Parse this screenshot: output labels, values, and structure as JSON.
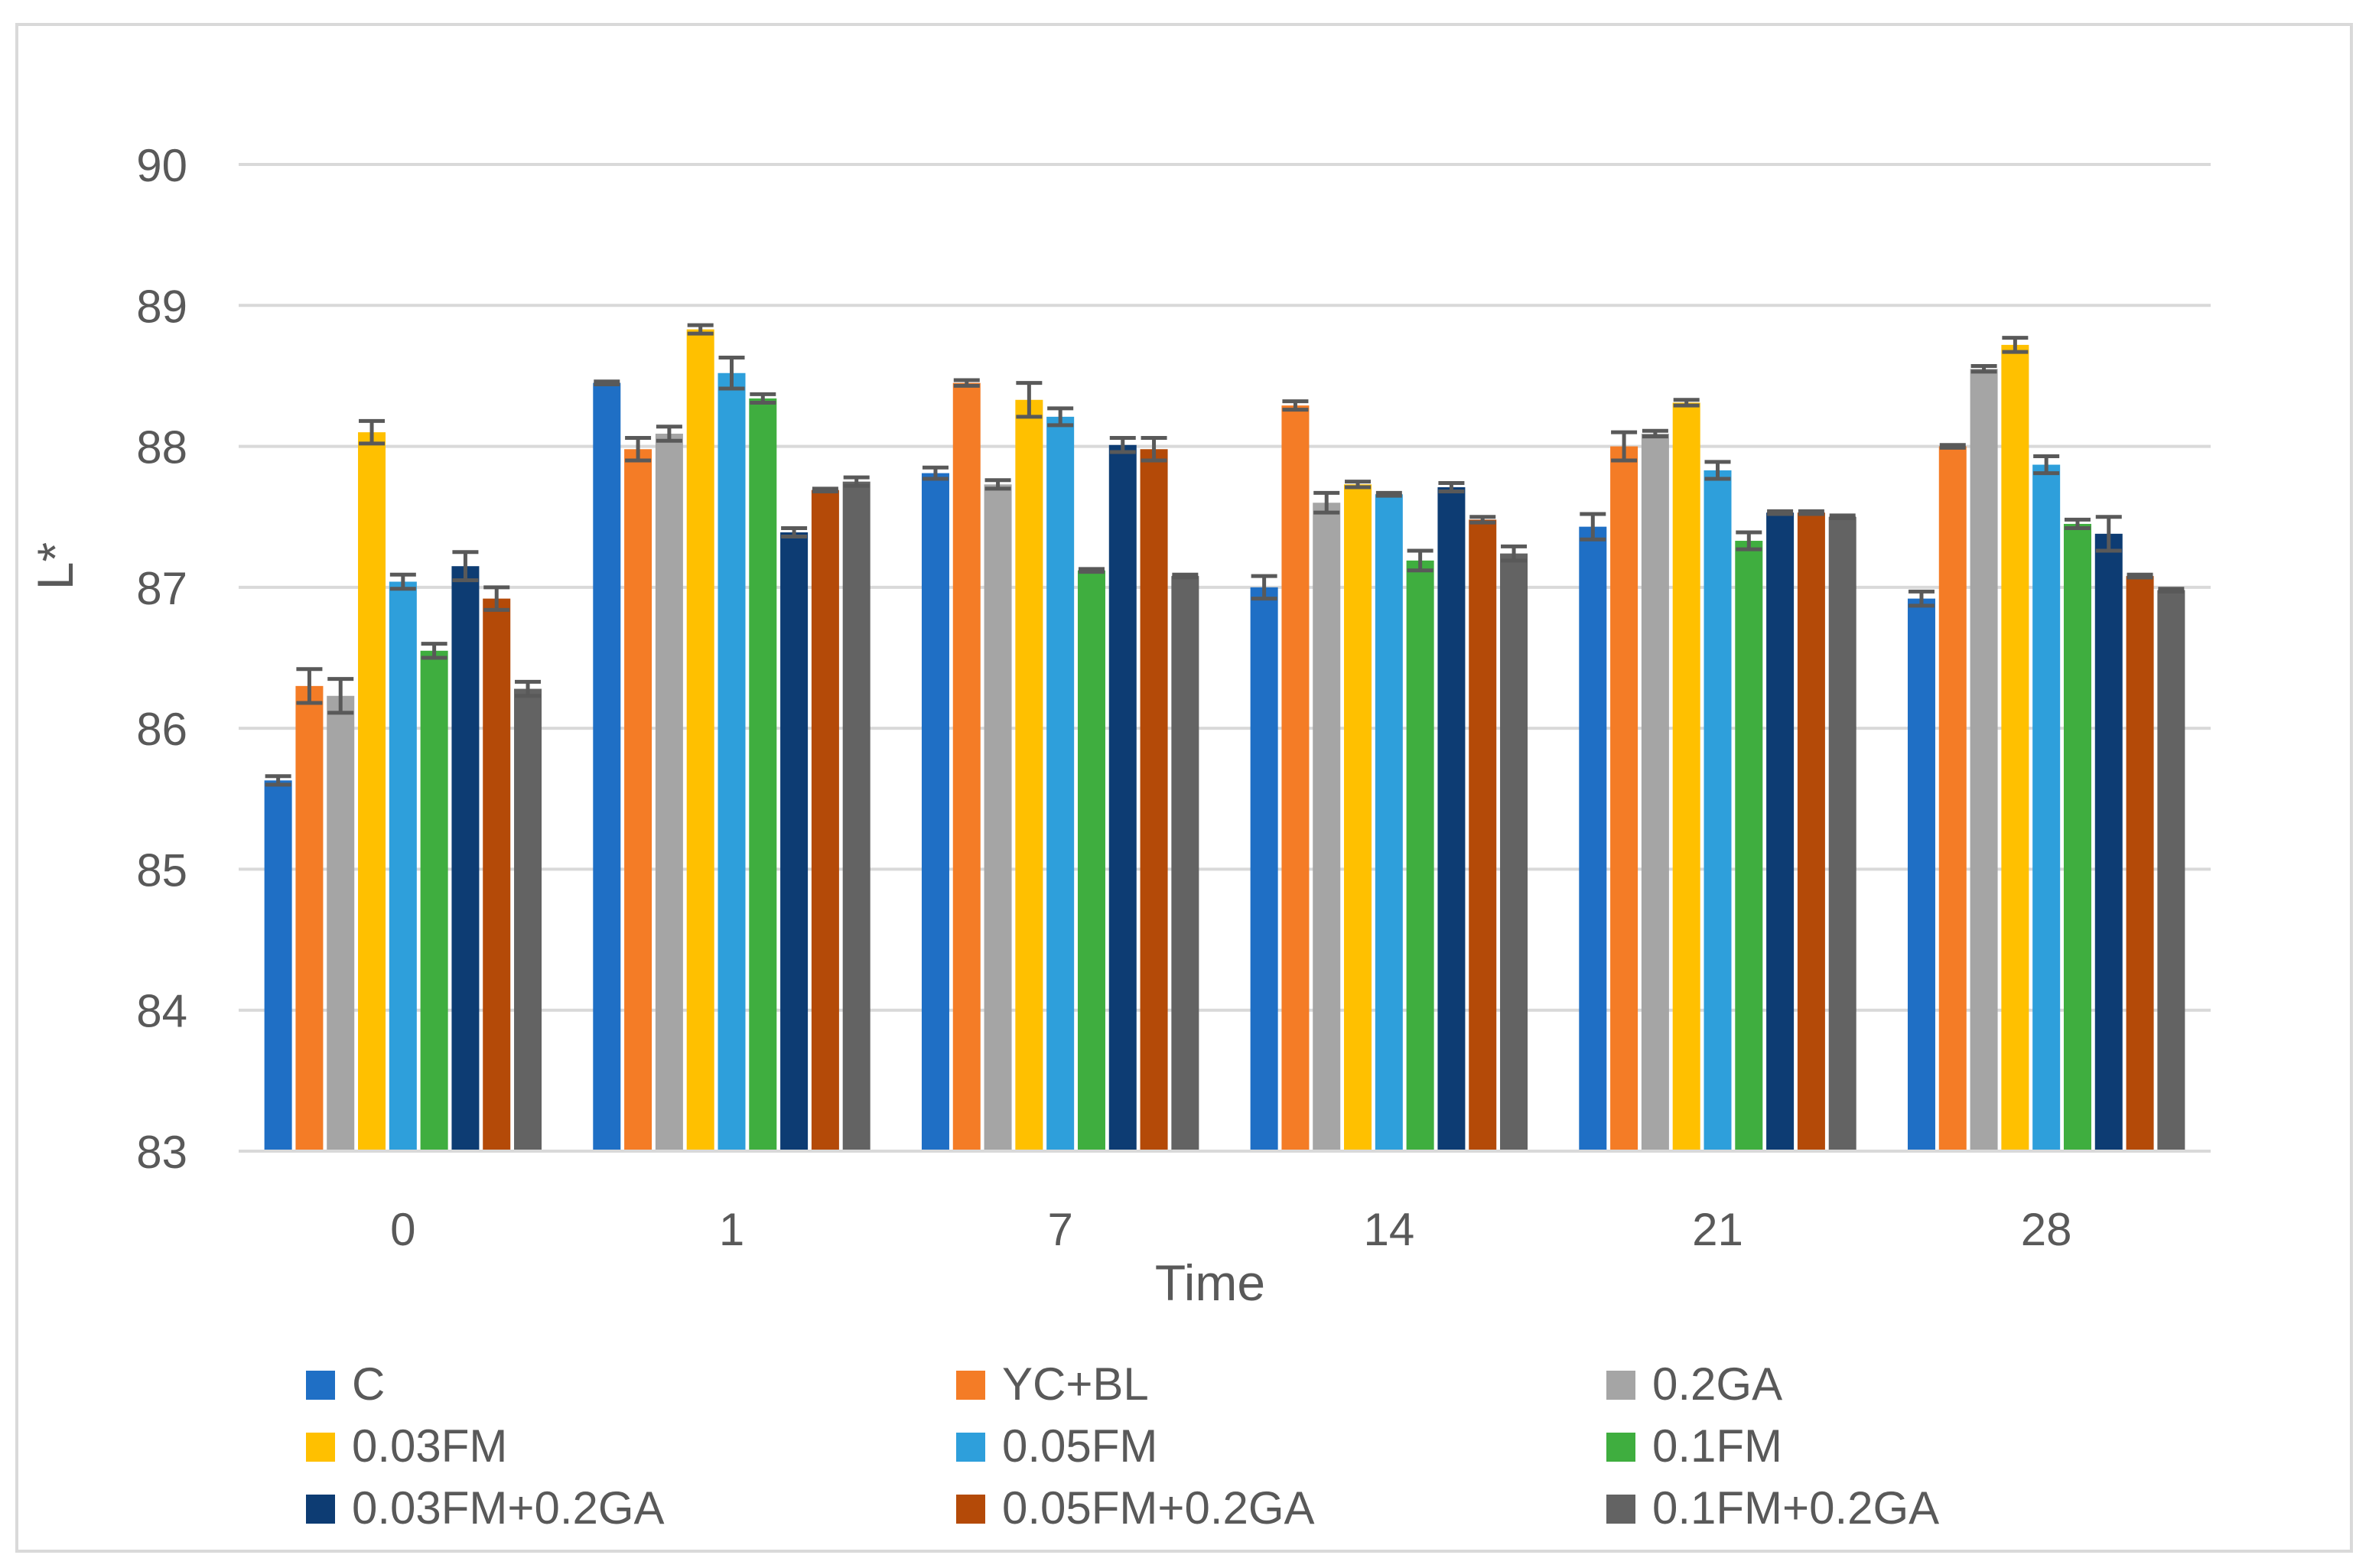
{
  "chart_data": {
    "type": "bar",
    "xlabel": "Time",
    "ylabel": "L*",
    "ylim": [
      83,
      90
    ],
    "yticks": [
      83,
      84,
      85,
      86,
      87,
      88,
      89,
      90
    ],
    "grid": true,
    "legend_position": "bottom",
    "categories": [
      "0",
      "1",
      "7",
      "14",
      "21",
      "28"
    ],
    "series": [
      {
        "name": "C",
        "color": "#1f6fc5",
        "values": [
          85.63,
          88.45,
          87.81,
          87.0,
          87.43,
          86.92
        ],
        "errors": [
          0.03,
          0.01,
          0.04,
          0.08,
          0.09,
          0.05
        ]
      },
      {
        "name": "YC+BL",
        "color": "#f47c26",
        "values": [
          86.3,
          87.98,
          88.45,
          88.29,
          88.0,
          88.0
        ],
        "errors": [
          0.12,
          0.08,
          0.02,
          0.03,
          0.1,
          0.01
        ]
      },
      {
        "name": "0.2GA",
        "color": "#a5a5a5",
        "values": [
          86.23,
          88.09,
          87.73,
          87.6,
          88.09,
          88.55
        ],
        "errors": [
          0.12,
          0.05,
          0.03,
          0.07,
          0.02,
          0.02
        ]
      },
      {
        "name": "0.03FM",
        "color": "#ffc000",
        "values": [
          88.1,
          88.83,
          88.33,
          87.73,
          88.31,
          88.72
        ],
        "errors": [
          0.08,
          0.03,
          0.12,
          0.02,
          0.02,
          0.05
        ]
      },
      {
        "name": "0.05FM",
        "color": "#2e9fdb",
        "values": [
          87.04,
          88.52,
          88.21,
          87.66,
          87.83,
          87.87
        ],
        "errors": [
          0.05,
          0.11,
          0.06,
          0.01,
          0.06,
          0.06
        ]
      },
      {
        "name": "0.1FM",
        "color": "#3fae3f",
        "values": [
          86.55,
          88.34,
          87.12,
          87.19,
          87.33,
          87.45
        ],
        "errors": [
          0.05,
          0.03,
          0.01,
          0.07,
          0.06,
          0.03
        ]
      },
      {
        "name": "0.03FM+0.2GA",
        "color": "#0d3c73",
        "values": [
          87.15,
          87.39,
          88.01,
          87.71,
          87.53,
          87.38
        ],
        "errors": [
          0.1,
          0.03,
          0.05,
          0.03,
          0.01,
          0.12
        ]
      },
      {
        "name": "0.05FM+0.2GA",
        "color": "#b44a08",
        "values": [
          86.92,
          87.69,
          87.98,
          87.48,
          87.53,
          87.08
        ],
        "errors": [
          0.08,
          0.01,
          0.08,
          0.02,
          0.01,
          0.01
        ]
      },
      {
        "name": "0.1FM+0.2GA",
        "color": "#636363",
        "values": [
          86.28,
          87.75,
          87.08,
          87.24,
          87.5,
          86.98
        ],
        "errors": [
          0.05,
          0.03,
          0.01,
          0.05,
          0.01,
          0.01
        ]
      }
    ]
  }
}
